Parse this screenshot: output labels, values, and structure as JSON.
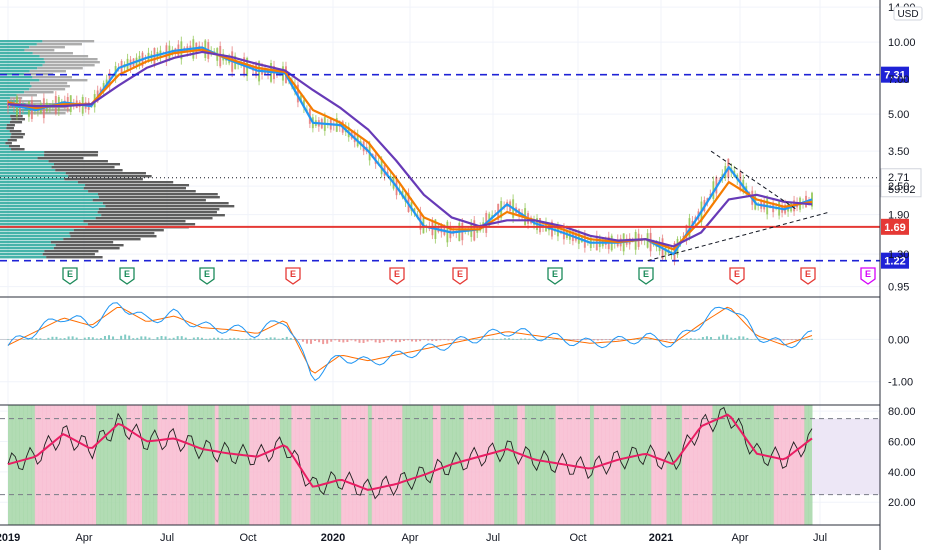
{
  "currency_label": "USD",
  "colors": {
    "up": "#26a69a",
    "down": "#ef5350",
    "ma_fast": "#2196f3",
    "ma_mid": "#f57c00",
    "ma_slow": "#673ab7",
    "level_line": "#1e22d6",
    "support_red": "#e53935",
    "vp_teal": "#26a69a",
    "vp_dark": "#424242",
    "rsi_line": "#e91e63",
    "macd_blue": "#2196f3",
    "macd_orange": "#ff6d00",
    "earnings_green": "#1b8a5a",
    "earnings_red": "#e53935",
    "earnings_purple": "#d500f9"
  },
  "chart_data": [
    {
      "type": "line",
      "name": "price",
      "scale": "log",
      "x_tick_labels": [
        "2019",
        "Apr",
        "Jul",
        "Oct",
        "2020",
        "Apr",
        "Jul",
        "Oct",
        "2021",
        "Apr",
        "Jul"
      ],
      "y_tick_labels": [
        "14.00",
        "10.00",
        "7.00",
        "5.00",
        "3.50",
        "2.50",
        "1.90",
        "1.30",
        "0.95"
      ],
      "x": [
        "2019-01",
        "2019-02",
        "2019-03",
        "2019-04",
        "2019-05",
        "2019-06",
        "2019-07",
        "2019-08",
        "2019-09",
        "2019-10",
        "2019-11",
        "2019-12",
        "2020-01",
        "2020-02",
        "2020-03",
        "2020-04",
        "2020-05",
        "2020-06",
        "2020-07",
        "2020-08",
        "2020-09",
        "2020-10",
        "2020-11",
        "2020-12",
        "2021-01",
        "2021-02",
        "2021-03",
        "2021-04",
        "2021-05",
        "2021-06"
      ],
      "series": [
        {
          "values": [
            5.5,
            5.2,
            5.6,
            5.4,
            7.8,
            8.6,
            9.2,
            9.5,
            8.4,
            7.6,
            7.4,
            4.6,
            4.5,
            3.5,
            2.5,
            1.7,
            1.6,
            1.65,
            2.1,
            1.75,
            1.6,
            1.45,
            1.45,
            1.5,
            1.3,
            1.95,
            3.0,
            2.1,
            2.0,
            2.2
          ]
        },
        {
          "values": [
            5.6,
            5.3,
            5.5,
            5.5,
            7.3,
            8.3,
            9.0,
            9.3,
            8.5,
            7.8,
            7.5,
            5.2,
            4.6,
            3.8,
            2.7,
            1.85,
            1.65,
            1.65,
            1.95,
            1.8,
            1.65,
            1.5,
            1.46,
            1.5,
            1.36,
            1.8,
            2.6,
            2.2,
            2.05,
            2.15
          ]
        },
        {
          "values": [
            5.5,
            5.4,
            5.4,
            5.5,
            6.6,
            7.8,
            8.6,
            9.1,
            8.7,
            8.1,
            7.6,
            6.3,
            5.3,
            4.3,
            3.2,
            2.3,
            1.85,
            1.7,
            1.8,
            1.8,
            1.7,
            1.55,
            1.48,
            1.5,
            1.4,
            1.6,
            2.2,
            2.3,
            2.15,
            2.1
          ]
        }
      ],
      "levels": [
        {
          "value": 7.31,
          "label": "7.31",
          "style": "dashed"
        },
        {
          "value": 1.69,
          "label": "1.69",
          "style": "solid"
        },
        {
          "value": 1.22,
          "label": "1.22",
          "style": "dashed"
        }
      ],
      "last_price": {
        "value": "2.71",
        "countdown": "59:02"
      },
      "earnings": [
        "E",
        "E",
        "E",
        "E",
        "E",
        "E",
        "E",
        "E",
        "E",
        "E",
        "E"
      ]
    },
    {
      "type": "bar",
      "name": "macd",
      "y_tick_labels": [
        "0.00",
        "-1.00"
      ],
      "values": [
        -0.15,
        0.2,
        0.55,
        0.35,
        0.85,
        0.45,
        0.6,
        0.3,
        0.25,
        0.15,
        0.5,
        -0.9,
        -0.4,
        -0.55,
        -0.4,
        -0.25,
        -0.1,
        0.05,
        0.2,
        0.1,
        0.0,
        -0.1,
        -0.05,
        0.05,
        -0.1,
        0.4,
        0.85,
        0.1,
        -0.15,
        0.1
      ]
    },
    {
      "type": "line",
      "name": "rsi",
      "y_tick_labels": [
        "80.00",
        "60.00",
        "40.00",
        "20.00"
      ],
      "bands": [
        75,
        25
      ],
      "values": [
        45,
        50,
        65,
        55,
        72,
        60,
        62,
        55,
        52,
        50,
        58,
        30,
        35,
        28,
        32,
        38,
        45,
        50,
        55,
        48,
        45,
        42,
        48,
        52,
        45,
        70,
        78,
        52,
        48,
        62
      ]
    }
  ]
}
